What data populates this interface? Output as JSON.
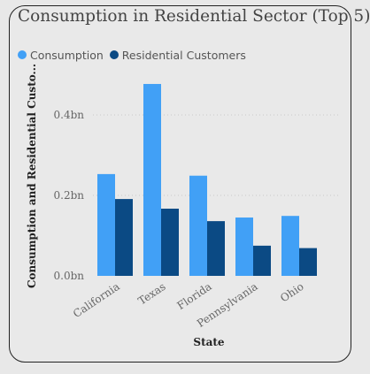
{
  "chart_data": {
    "type": "bar",
    "title": "Consumption in Residential Sector (Top 5)",
    "xlabel": "State",
    "ylabel": "Consumption and Residential Custo...",
    "categories": [
      "California",
      "Texas",
      "Florida",
      "Pennsylvania",
      "Ohio"
    ],
    "series": [
      {
        "name": "Consumption",
        "color": "#41a0f6",
        "values": [
          0.253,
          0.477,
          0.249,
          0.145,
          0.149
        ]
      },
      {
        "name": "Residential Customers",
        "color": "#0b4a84",
        "values": [
          0.191,
          0.167,
          0.136,
          0.075,
          0.069
        ]
      }
    ],
    "yticks": [
      {
        "value": 0.0,
        "label": "0.0bn"
      },
      {
        "value": 0.2,
        "label": "0.2bn"
      },
      {
        "value": 0.4,
        "label": "0.4bn"
      }
    ],
    "ylim": [
      0,
      0.48
    ],
    "grid": true,
    "legend_position": "top-left"
  }
}
